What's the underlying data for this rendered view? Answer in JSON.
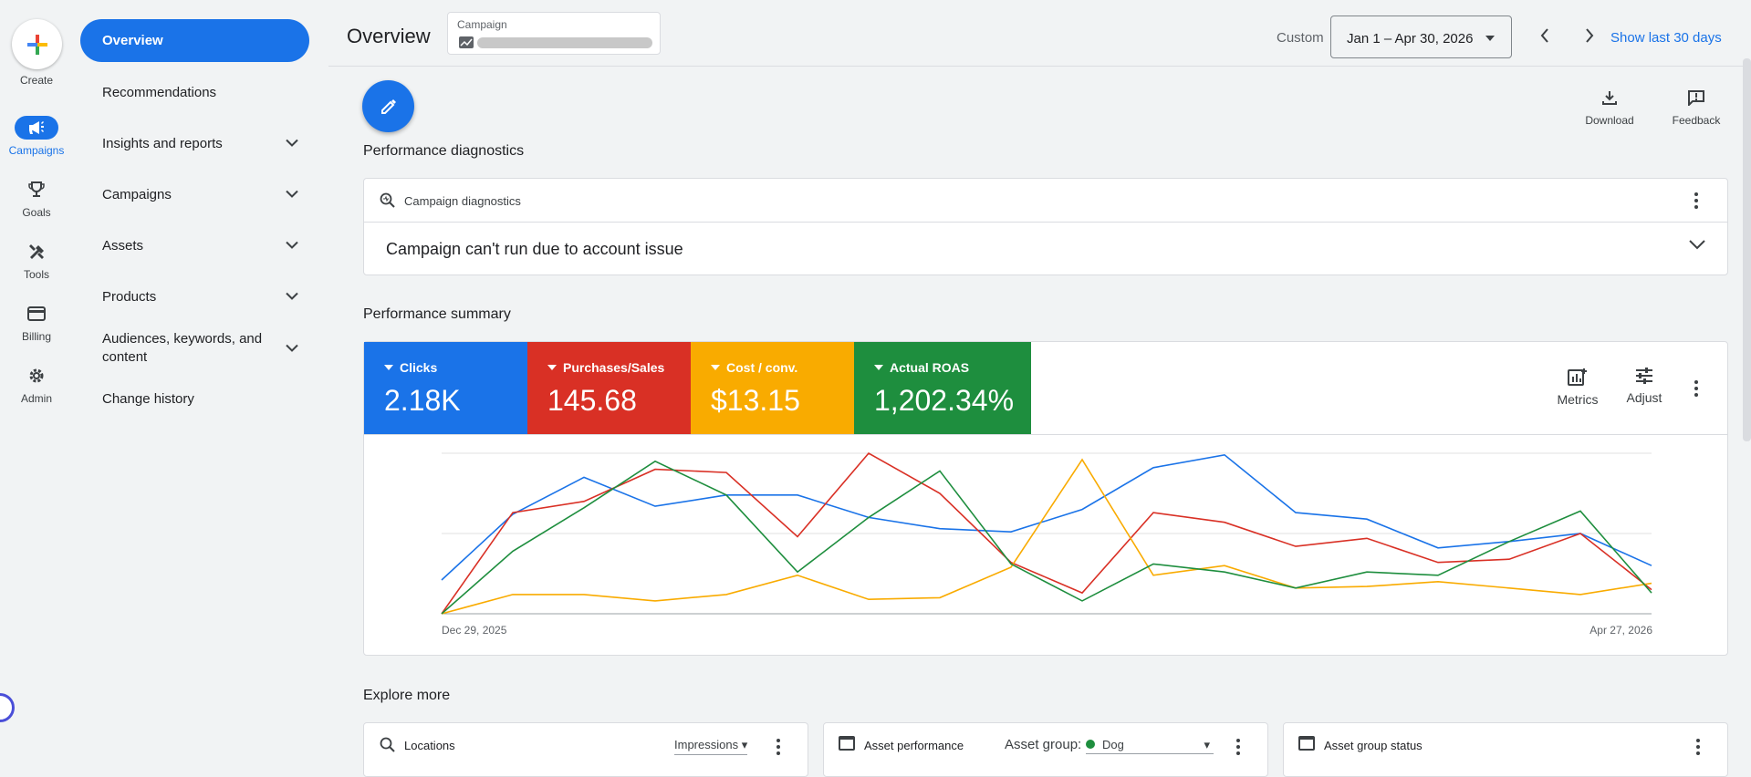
{
  "rail": {
    "create_label": "Create",
    "items": [
      {
        "label": "Campaigns",
        "icon": "megaphone-icon",
        "active": true
      },
      {
        "label": "Goals",
        "icon": "trophy-icon"
      },
      {
        "label": "Tools",
        "icon": "tools-icon"
      },
      {
        "label": "Billing",
        "icon": "credit-card-icon"
      },
      {
        "label": "Admin",
        "icon": "gear-icon"
      }
    ]
  },
  "nav": {
    "items": [
      {
        "label": "Overview",
        "active": true
      },
      {
        "label": "Recommendations"
      },
      {
        "label": "Insights and reports",
        "expandable": true
      },
      {
        "label": "Campaigns",
        "expandable": true
      },
      {
        "label": "Assets",
        "expandable": true
      },
      {
        "label": "Products",
        "expandable": true
      },
      {
        "label": "Audiences, keywords, and content",
        "expandable": true
      },
      {
        "label": "Change history"
      }
    ]
  },
  "header": {
    "title": "Overview",
    "campaign_label": "Campaign",
    "custom_label": "Custom",
    "date_range": "Jan 1 – Apr 30, 2026",
    "show_last": "Show last 30 days"
  },
  "toolbar": {
    "download_label": "Download",
    "feedback_label": "Feedback"
  },
  "diagnostics": {
    "section_title": "Performance diagnostics",
    "card_title": "Campaign diagnostics",
    "issue": "Campaign can't run due to account issue"
  },
  "summary": {
    "section_title": "Performance summary",
    "metrics": [
      {
        "name": "Clicks",
        "value": "2.18K",
        "color": "#1a73e8"
      },
      {
        "name": "Purchases/Sales",
        "value": "145.68",
        "color": "#d93025"
      },
      {
        "name": "Cost / conv.",
        "value": "$13.15",
        "color": "#f9ab00"
      },
      {
        "name": "Actual ROAS",
        "value": "1,202.34%",
        "color": "#1e8e3e"
      }
    ],
    "metrics_label": "Metrics",
    "adjust_label": "Adjust"
  },
  "chart_data": {
    "type": "line",
    "x_start_label": "Dec 29, 2025",
    "x_end_label": "Apr 27, 2026",
    "grid": true,
    "ylim": [
      0,
      1
    ],
    "series": [
      {
        "color": "#1a73e8",
        "values": [
          0.21,
          0.62,
          0.85,
          0.67,
          0.74,
          0.74,
          0.6,
          0.53,
          0.51,
          0.65,
          0.91,
          0.99,
          0.63,
          0.59,
          0.41,
          0.45,
          0.5,
          0.3
        ]
      },
      {
        "color": "#d93025",
        "values": [
          0.0,
          0.63,
          0.7,
          0.9,
          0.88,
          0.48,
          1.0,
          0.75,
          0.32,
          0.13,
          0.63,
          0.57,
          0.42,
          0.47,
          0.32,
          0.34,
          0.5,
          0.15
        ]
      },
      {
        "color": "#f9ab00",
        "values": [
          0.0,
          0.12,
          0.12,
          0.08,
          0.12,
          0.24,
          0.09,
          0.1,
          0.29,
          0.96,
          0.24,
          0.3,
          0.16,
          0.17,
          0.2,
          0.16,
          0.12,
          0.19
        ]
      },
      {
        "color": "#1e8e3e",
        "values": [
          0.0,
          0.39,
          0.66,
          0.95,
          0.74,
          0.26,
          0.6,
          0.89,
          0.31,
          0.08,
          0.31,
          0.26,
          0.16,
          0.26,
          0.24,
          0.45,
          0.64,
          0.13
        ]
      }
    ]
  },
  "explore": {
    "section_title": "Explore more",
    "cards": [
      {
        "title": "Locations",
        "dropdown": "Impressions"
      },
      {
        "title": "Asset performance",
        "filter_label": "Asset group:",
        "filter_value": "Dog",
        "dot_color": "#1e8e3e"
      },
      {
        "title": "Asset group status"
      }
    ]
  }
}
